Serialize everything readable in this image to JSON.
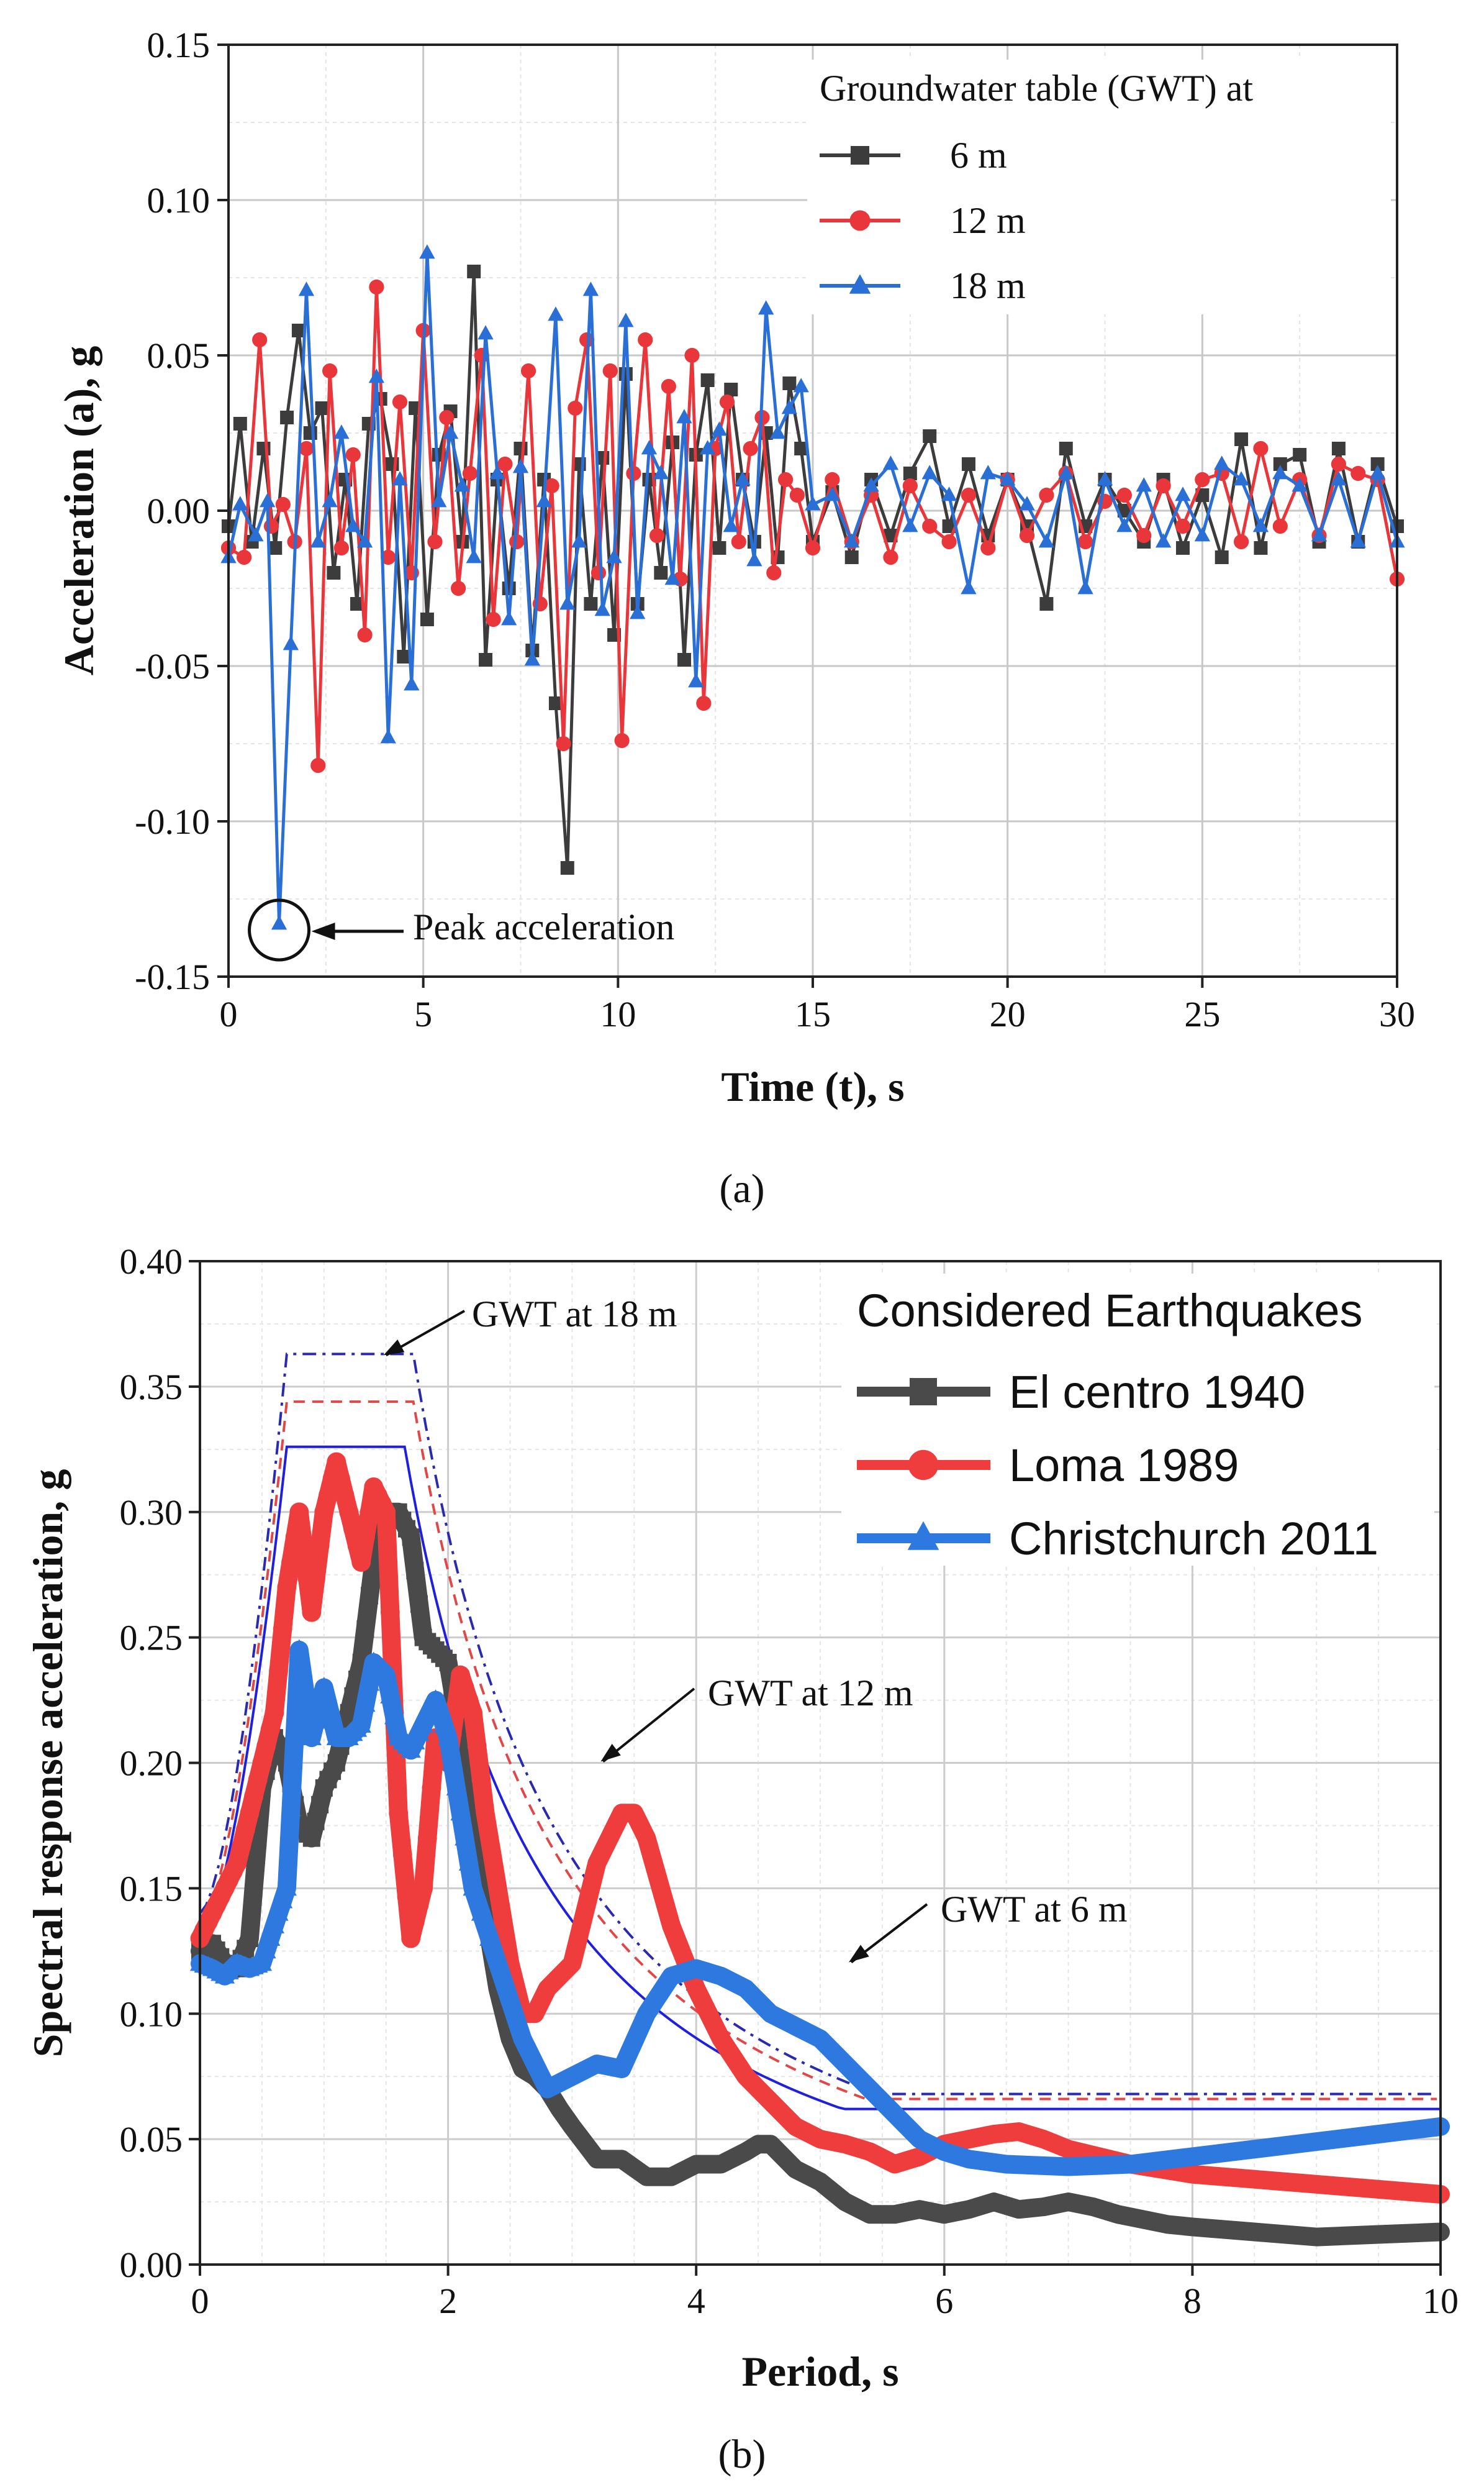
{
  "chart_data": [
    {
      "id": "a",
      "type": "line",
      "panel_label": "(a)",
      "xlabel": "Time (t), s",
      "ylabel": "Acceleration (a), g",
      "xlim": [
        0,
        30
      ],
      "ylim": [
        -0.15,
        0.15
      ],
      "xticks": [
        0,
        5,
        10,
        15,
        20,
        25,
        30
      ],
      "yticks": [
        "-0.15",
        "-0.10",
        "-0.05",
        "0.00",
        "0.05",
        "0.10",
        "0.15"
      ],
      "grid": true,
      "legend_title": "Groundwater table (GWT) at",
      "legend_position": "top-right",
      "annotation": "Peak acceleration",
      "annotation_point": [
        1.3,
        -0.133
      ],
      "series": [
        {
          "name": "6 m",
          "color": "#3c3c3c",
          "marker": "square",
          "x": [
            0,
            0.3,
            0.6,
            0.9,
            1.2,
            1.5,
            1.8,
            2.1,
            2.4,
            2.7,
            3.0,
            3.3,
            3.6,
            3.9,
            4.2,
            4.5,
            4.8,
            5.1,
            5.4,
            5.7,
            6.0,
            6.3,
            6.6,
            6.9,
            7.2,
            7.5,
            7.8,
            8.1,
            8.4,
            8.7,
            9.0,
            9.3,
            9.6,
            9.9,
            10.2,
            10.5,
            10.8,
            11.1,
            11.4,
            11.7,
            12.0,
            12.3,
            12.6,
            12.9,
            13.2,
            13.5,
            13.8,
            14.1,
            14.4,
            14.7,
            15.0,
            15.5,
            16.0,
            16.5,
            17.0,
            17.5,
            18.0,
            18.5,
            19.0,
            19.5,
            20.0,
            20.5,
            21.0,
            21.5,
            22.0,
            22.5,
            23.0,
            23.5,
            24.0,
            24.5,
            25.0,
            25.5,
            26.0,
            26.5,
            27.0,
            27.5,
            28.0,
            28.5,
            29.0,
            29.5,
            30.0
          ],
          "y": [
            -0.005,
            0.028,
            -0.01,
            0.02,
            -0.012,
            0.03,
            0.058,
            0.025,
            0.033,
            -0.02,
            0.01,
            -0.03,
            0.028,
            0.036,
            0.015,
            -0.047,
            0.033,
            -0.035,
            0.018,
            0.032,
            -0.01,
            0.077,
            -0.048,
            0.01,
            -0.025,
            0.02,
            -0.045,
            0.01,
            -0.062,
            -0.115,
            0.015,
            -0.03,
            0.017,
            -0.04,
            0.044,
            -0.03,
            0.01,
            -0.02,
            0.022,
            -0.048,
            0.018,
            0.042,
            -0.012,
            0.039,
            0.01,
            -0.01,
            0.025,
            -0.015,
            0.041,
            0.02,
            -0.01,
            0.006,
            -0.015,
            0.01,
            -0.008,
            0.012,
            0.024,
            -0.005,
            0.015,
            -0.008,
            0.01,
            -0.005,
            -0.03,
            0.02,
            -0.005,
            0.01,
            0.0,
            -0.01,
            0.01,
            -0.012,
            0.005,
            -0.015,
            0.023,
            -0.012,
            0.015,
            0.018,
            -0.01,
            0.02,
            -0.01,
            0.015,
            -0.005
          ]
        },
        {
          "name": "12 m",
          "color": "#e8363a",
          "marker": "circle",
          "x": [
            0,
            0.4,
            0.8,
            1.1,
            1.4,
            1.7,
            2.0,
            2.3,
            2.6,
            2.9,
            3.2,
            3.5,
            3.8,
            4.1,
            4.4,
            4.7,
            5.0,
            5.3,
            5.6,
            5.9,
            6.2,
            6.5,
            6.8,
            7.1,
            7.4,
            7.7,
            8.0,
            8.3,
            8.6,
            8.9,
            9.2,
            9.5,
            9.8,
            10.1,
            10.4,
            10.7,
            11.0,
            11.3,
            11.6,
            11.9,
            12.2,
            12.5,
            12.8,
            13.1,
            13.4,
            13.7,
            14.0,
            14.3,
            14.6,
            15.0,
            15.5,
            16.0,
            16.5,
            17.0,
            17.5,
            18.0,
            18.5,
            19.0,
            19.5,
            20.0,
            20.5,
            21.0,
            21.5,
            22.0,
            22.5,
            23.0,
            23.5,
            24.0,
            24.5,
            25.0,
            25.5,
            26.0,
            26.5,
            27.0,
            27.5,
            28.0,
            28.5,
            29.0,
            29.5,
            30.0
          ],
          "y": [
            -0.012,
            -0.015,
            0.055,
            -0.005,
            0.002,
            -0.01,
            0.02,
            -0.082,
            0.045,
            -0.012,
            0.018,
            -0.04,
            0.072,
            -0.015,
            0.035,
            -0.02,
            0.058,
            -0.01,
            0.03,
            -0.025,
            0.012,
            0.05,
            -0.035,
            0.015,
            -0.01,
            0.045,
            -0.03,
            0.008,
            -0.075,
            0.033,
            0.055,
            -0.02,
            0.045,
            -0.074,
            0.012,
            0.055,
            -0.008,
            0.04,
            -0.022,
            0.05,
            -0.062,
            0.02,
            0.035,
            -0.01,
            0.02,
            0.03,
            -0.02,
            0.01,
            0.005,
            -0.012,
            0.01,
            -0.01,
            0.005,
            -0.015,
            0.008,
            -0.005,
            -0.01,
            0.005,
            -0.012,
            0.01,
            -0.008,
            0.005,
            0.012,
            -0.01,
            0.003,
            0.005,
            -0.008,
            0.008,
            -0.005,
            0.01,
            0.012,
            -0.01,
            0.02,
            -0.005,
            0.01,
            -0.008,
            0.015,
            0.012,
            0.01,
            -0.022
          ]
        },
        {
          "name": "18 m",
          "color": "#2a6fd6",
          "marker": "triangle",
          "x": [
            0,
            0.3,
            0.7,
            1.0,
            1.3,
            1.6,
            2.0,
            2.3,
            2.6,
            2.9,
            3.2,
            3.5,
            3.8,
            4.1,
            4.4,
            4.7,
            5.1,
            5.4,
            5.7,
            6.0,
            6.3,
            6.6,
            6.9,
            7.2,
            7.5,
            7.8,
            8.1,
            8.4,
            8.7,
            9.0,
            9.3,
            9.6,
            9.9,
            10.2,
            10.5,
            10.8,
            11.1,
            11.4,
            11.7,
            12.0,
            12.3,
            12.6,
            12.9,
            13.2,
            13.5,
            13.8,
            14.1,
            14.4,
            14.7,
            15.0,
            15.5,
            16.0,
            16.5,
            17.0,
            17.5,
            18.0,
            18.5,
            19.0,
            19.5,
            20.0,
            20.5,
            21.0,
            21.5,
            22.0,
            22.5,
            23.0,
            23.5,
            24.0,
            24.5,
            25.0,
            25.5,
            26.0,
            26.5,
            27.0,
            27.5,
            28.0,
            28.5,
            29.0,
            29.5,
            30.0
          ],
          "y": [
            -0.015,
            0.002,
            -0.008,
            0.003,
            -0.133,
            -0.043,
            0.071,
            -0.01,
            0.003,
            0.025,
            -0.005,
            -0.01,
            0.043,
            -0.073,
            0.01,
            -0.056,
            0.083,
            0.003,
            0.025,
            0.008,
            -0.015,
            0.057,
            0.012,
            -0.035,
            0.014,
            -0.048,
            0.003,
            0.063,
            -0.03,
            -0.01,
            0.071,
            -0.032,
            -0.015,
            0.061,
            -0.033,
            0.02,
            0.012,
            -0.022,
            0.03,
            -0.055,
            0.02,
            0.026,
            -0.005,
            0.01,
            -0.016,
            0.065,
            0.025,
            0.033,
            0.04,
            0.002,
            0.005,
            -0.01,
            0.008,
            0.015,
            -0.005,
            0.012,
            0.005,
            -0.025,
            0.012,
            0.01,
            0.002,
            -0.01,
            0.012,
            -0.025,
            0.01,
            -0.005,
            0.008,
            -0.01,
            0.005,
            -0.008,
            0.015,
            0.01,
            -0.005,
            0.012,
            0.008,
            -0.008,
            0.01,
            -0.01,
            0.012,
            -0.01
          ]
        }
      ]
    },
    {
      "id": "b",
      "type": "line",
      "panel_label": "(b)",
      "xlabel": "Period, s",
      "ylabel": "Spectral response acceleration, g",
      "xlim": [
        0,
        10
      ],
      "ylim": [
        0,
        0.4
      ],
      "xticks": [
        0,
        2,
        4,
        6,
        8,
        10
      ],
      "yticks": [
        "0.00",
        "0.05",
        "0.10",
        "0.15",
        "0.20",
        "0.25",
        "0.30",
        "0.35",
        "0.40"
      ],
      "grid": true,
      "legend_title": "Considered Earthquakes",
      "legend_position": "top-right",
      "annotations": [
        {
          "text": "GWT at 18 m",
          "target": [
            1.45,
            0.362
          ]
        },
        {
          "text": "GWT at 12 m",
          "target": [
            3.2,
            0.2
          ]
        },
        {
          "text": "GWT at 6 m",
          "target": [
            5.2,
            0.12
          ]
        }
      ],
      "series": [
        {
          "name": "El centro 1940",
          "color": "#4a4a4a",
          "marker": "square",
          "x": [
            0,
            0.1,
            0.2,
            0.3,
            0.4,
            0.5,
            0.6,
            0.7,
            0.8,
            0.9,
            1.0,
            1.1,
            1.2,
            1.3,
            1.4,
            1.5,
            1.6,
            1.7,
            1.8,
            1.9,
            2.0,
            2.1,
            2.2,
            2.3,
            2.4,
            2.5,
            2.6,
            2.7,
            2.8,
            2.9,
            3.0,
            3.2,
            3.4,
            3.6,
            3.8,
            4.0,
            4.2,
            4.4,
            4.5,
            4.6,
            4.8,
            5.0,
            5.2,
            5.4,
            5.6,
            5.8,
            6.0,
            6.2,
            6.4,
            6.6,
            6.8,
            7.0,
            7.2,
            7.4,
            7.6,
            7.8,
            8.0,
            8.5,
            9.0,
            9.5,
            10.0
          ],
          "y": [
            0.125,
            0.128,
            0.12,
            0.118,
            0.13,
            0.19,
            0.21,
            0.2,
            0.175,
            0.17,
            0.19,
            0.2,
            0.22,
            0.24,
            0.28,
            0.3,
            0.3,
            0.29,
            0.25,
            0.245,
            0.24,
            0.21,
            0.17,
            0.14,
            0.11,
            0.09,
            0.078,
            0.075,
            0.07,
            0.062,
            0.055,
            0.042,
            0.042,
            0.035,
            0.035,
            0.04,
            0.04,
            0.045,
            0.048,
            0.048,
            0.038,
            0.033,
            0.025,
            0.02,
            0.02,
            0.022,
            0.02,
            0.022,
            0.025,
            0.022,
            0.023,
            0.025,
            0.023,
            0.02,
            0.018,
            0.016,
            0.015,
            0.013,
            0.011,
            0.012,
            0.013
          ]
        },
        {
          "name": "Loma 1989",
          "color": "#ef3d3d",
          "marker": "circle",
          "x": [
            0,
            0.1,
            0.2,
            0.3,
            0.4,
            0.5,
            0.6,
            0.7,
            0.8,
            0.9,
            1.0,
            1.1,
            1.2,
            1.3,
            1.4,
            1.5,
            1.6,
            1.7,
            1.8,
            1.9,
            2.0,
            2.1,
            2.2,
            2.3,
            2.4,
            2.5,
            2.6,
            2.7,
            2.8,
            2.9,
            3.0,
            3.2,
            3.4,
            3.5,
            3.6,
            3.8,
            4.0,
            4.2,
            4.4,
            4.6,
            4.8,
            5.0,
            5.2,
            5.4,
            5.6,
            5.8,
            6.0,
            6.2,
            6.4,
            6.6,
            6.8,
            7.0,
            7.5,
            8.0,
            8.5,
            9.0,
            9.5,
            10.0
          ],
          "y": [
            0.13,
            0.14,
            0.15,
            0.16,
            0.18,
            0.2,
            0.22,
            0.27,
            0.3,
            0.26,
            0.3,
            0.32,
            0.3,
            0.28,
            0.31,
            0.3,
            0.18,
            0.13,
            0.15,
            0.21,
            0.2,
            0.235,
            0.22,
            0.18,
            0.15,
            0.12,
            0.1,
            0.1,
            0.11,
            0.115,
            0.12,
            0.16,
            0.18,
            0.18,
            0.17,
            0.135,
            0.11,
            0.09,
            0.075,
            0.065,
            0.055,
            0.05,
            0.048,
            0.045,
            0.04,
            0.043,
            0.048,
            0.05,
            0.052,
            0.053,
            0.05,
            0.046,
            0.04,
            0.036,
            0.034,
            0.032,
            0.03,
            0.028
          ]
        },
        {
          "name": "Christchurch 2011",
          "color": "#2d79e0",
          "marker": "triangle",
          "x": [
            0,
            0.1,
            0.2,
            0.3,
            0.4,
            0.5,
            0.6,
            0.7,
            0.8,
            0.9,
            1.0,
            1.1,
            1.2,
            1.3,
            1.4,
            1.5,
            1.6,
            1.7,
            1.8,
            1.9,
            2.0,
            2.1,
            2.2,
            2.4,
            2.6,
            2.8,
            3.0,
            3.2,
            3.4,
            3.6,
            3.8,
            4.0,
            4.2,
            4.4,
            4.6,
            4.8,
            5.0,
            5.2,
            5.4,
            5.6,
            5.8,
            6.0,
            6.2,
            6.5,
            7.0,
            7.5,
            8.0,
            8.5,
            9.0,
            9.5,
            10.0
          ],
          "y": [
            0.12,
            0.118,
            0.115,
            0.12,
            0.118,
            0.12,
            0.135,
            0.15,
            0.245,
            0.21,
            0.23,
            0.21,
            0.21,
            0.215,
            0.24,
            0.235,
            0.21,
            0.205,
            0.215,
            0.225,
            0.21,
            0.18,
            0.15,
            0.12,
            0.09,
            0.07,
            0.075,
            0.08,
            0.078,
            0.1,
            0.115,
            0.118,
            0.115,
            0.11,
            0.1,
            0.095,
            0.09,
            0.08,
            0.07,
            0.06,
            0.05,
            0.045,
            0.042,
            0.04,
            0.039,
            0.04,
            0.043,
            0.046,
            0.049,
            0.052,
            0.055
          ]
        },
        {
          "name": "GWT at 6 m",
          "color": "#1f1fe0",
          "style": "solid",
          "plateau": [
            0.7,
            1.65
          ],
          "start": 0.13,
          "peak": 0.326,
          "end": 0.062
        },
        {
          "name": "GWT at 12 m",
          "color": "#e04848",
          "style": "dash",
          "plateau": [
            0.7,
            1.72
          ],
          "start": 0.135,
          "peak": 0.344,
          "end": 0.066
        },
        {
          "name": "GWT at 18 m",
          "color": "#2a2ab0",
          "style": "dashdot",
          "plateau": [
            0.7,
            1.72
          ],
          "start": 0.14,
          "peak": 0.363,
          "end": 0.068
        }
      ]
    }
  ]
}
